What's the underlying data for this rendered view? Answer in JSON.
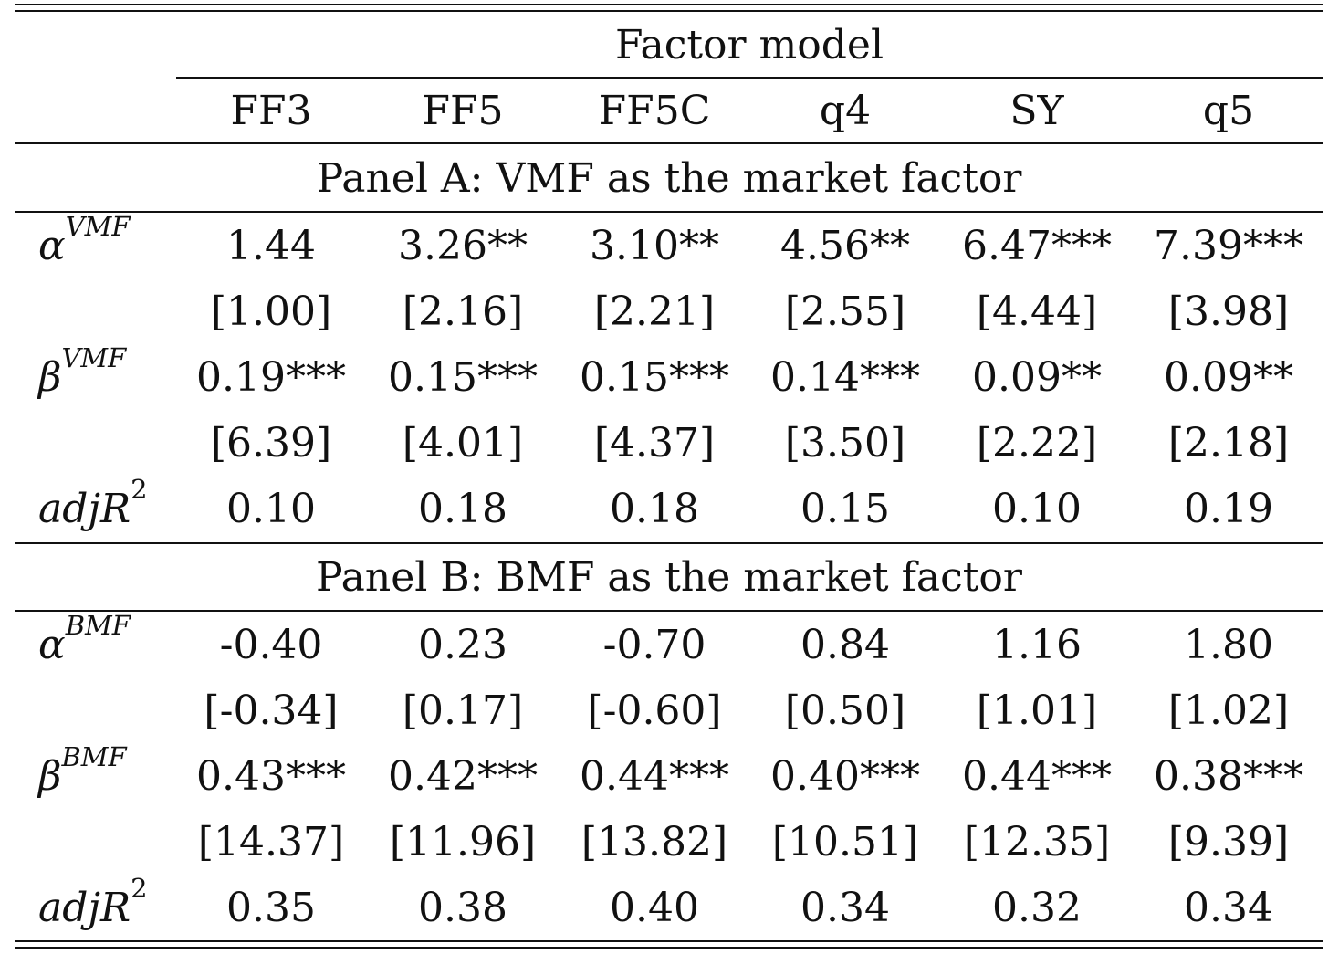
{
  "table": {
    "spanner_header": "Factor model",
    "columns": [
      "FF3",
      "FF5",
      "FF5C",
      "q4",
      "SY",
      "q5"
    ],
    "panels": [
      {
        "title": "Panel A: VMF as the market factor",
        "rows": [
          {
            "label_main": "α",
            "label_sup": "VMF",
            "values": [
              "1.44",
              "3.26**",
              "3.10**",
              "4.56**",
              "6.47***",
              "7.39***"
            ]
          },
          {
            "label_main": "",
            "label_sup": "",
            "values": [
              "[1.00]",
              "[2.16]",
              "[2.21]",
              "[2.55]",
              "[4.44]",
              "[3.98]"
            ]
          },
          {
            "label_main": "β",
            "label_sup": "VMF",
            "values": [
              "0.19***",
              "0.15***",
              "0.15***",
              "0.14***",
              "0.09**",
              "0.09**"
            ]
          },
          {
            "label_main": "",
            "label_sup": "",
            "values": [
              "[6.39]",
              "[4.01]",
              "[4.37]",
              "[3.50]",
              "[2.22]",
              "[2.18]"
            ]
          },
          {
            "label_main": "adjR",
            "label_sup": "2",
            "values": [
              "0.10",
              "0.18",
              "0.18",
              "0.15",
              "0.10",
              "0.19"
            ]
          }
        ]
      },
      {
        "title": "Panel B: BMF as the market factor",
        "rows": [
          {
            "label_main": "α",
            "label_sup": "BMF",
            "values": [
              "-0.40",
              "0.23",
              "-0.70",
              "0.84",
              "1.16",
              "1.80"
            ]
          },
          {
            "label_main": "",
            "label_sup": "",
            "values": [
              "[-0.34]",
              "[0.17]",
              "[-0.60]",
              "[0.50]",
              "[1.01]",
              "[1.02]"
            ]
          },
          {
            "label_main": "β",
            "label_sup": "BMF",
            "values": [
              "0.43***",
              "0.42***",
              "0.44***",
              "0.40***",
              "0.44***",
              "0.38***"
            ]
          },
          {
            "label_main": "",
            "label_sup": "",
            "values": [
              "[14.37]",
              "[11.96]",
              "[13.82]",
              "[10.51]",
              "[12.35]",
              "[9.39]"
            ]
          },
          {
            "label_main": "adjR",
            "label_sup": "2",
            "values": [
              "0.35",
              "0.38",
              "0.40",
              "0.34",
              "0.32",
              "0.34"
            ]
          }
        ]
      }
    ]
  }
}
